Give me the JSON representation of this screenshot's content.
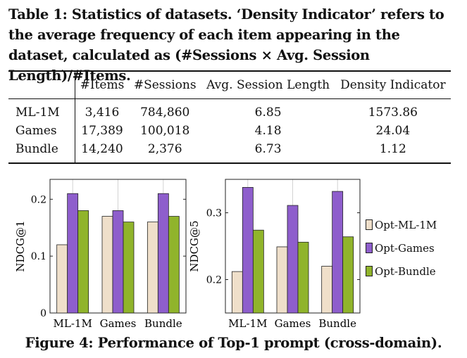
{
  "table": {
    "caption": "Table 1: Statistics of datasets. ‘Density Indicator’ refers to the average frequency of each item appearing in the dataset, calculated as (#Sessions × Avg. Session Length)/#Items.",
    "headers": [
      "",
      "#Items",
      "#Sessions",
      "Avg. Session Length",
      "Density Indicator"
    ],
    "rows": [
      [
        "ML-1M",
        "3,416",
        "784,860",
        "6.85",
        "1573.86"
      ],
      [
        "Games",
        "17,389",
        "100,018",
        "4.18",
        "24.04"
      ],
      [
        "Bundle",
        "14,240",
        "2,376",
        "6.73",
        "1.12"
      ]
    ]
  },
  "figure_caption": "Figure 4: Performance of Top-1 prompt (cross-domain).",
  "legend": [
    {
      "label": "Opt-ML-1M",
      "color": "#efdfca"
    },
    {
      "label": "Opt-Games",
      "color": "#8e5ecc"
    },
    {
      "label": "Opt-Bundle",
      "color": "#90b42b"
    }
  ],
  "chart_data": [
    {
      "type": "bar",
      "categories": [
        "ML-1M",
        "Games",
        "Bundle"
      ],
      "ylabel": "NDCG@1",
      "ylim": [
        0,
        0.235
      ],
      "yticks": [
        0,
        0.1,
        0.2
      ],
      "ytick_labels": [
        "0",
        "0.1",
        "0.2"
      ],
      "series": [
        {
          "name": "Opt-ML-1M",
          "values": [
            0.12,
            0.17,
            0.16
          ]
        },
        {
          "name": "Opt-Games",
          "values": [
            0.21,
            0.18,
            0.21
          ]
        },
        {
          "name": "Opt-Bundle",
          "values": [
            0.18,
            0.16,
            0.17
          ]
        }
      ]
    },
    {
      "type": "bar",
      "categories": [
        "ML-1M",
        "Games",
        "Bundle"
      ],
      "ylabel": "NDCG@5",
      "ylim": [
        0.15,
        0.35
      ],
      "yticks": [
        0.2,
        0.3
      ],
      "ytick_labels": [
        "0.2",
        "0.3"
      ],
      "series": [
        {
          "name": "Opt-ML-1M",
          "values": [
            0.212,
            0.249,
            0.22
          ]
        },
        {
          "name": "Opt-Games",
          "values": [
            0.338,
            0.311,
            0.332
          ]
        },
        {
          "name": "Opt-Bundle",
          "values": [
            0.274,
            0.256,
            0.264
          ]
        }
      ]
    }
  ]
}
